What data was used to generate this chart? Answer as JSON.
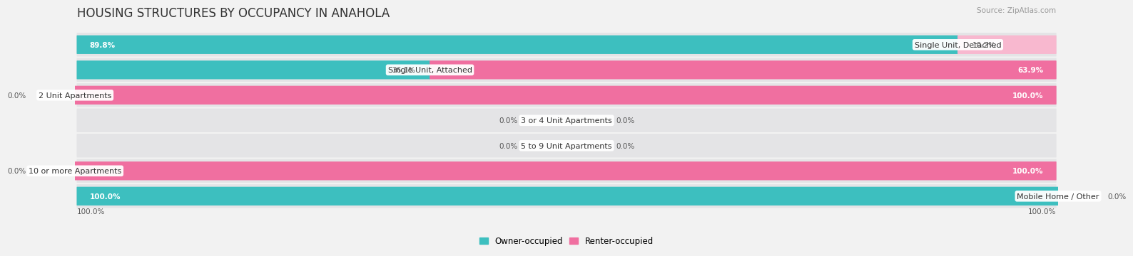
{
  "title": "HOUSING STRUCTURES BY OCCUPANCY IN ANAHOLA",
  "source": "Source: ZipAtlas.com",
  "categories": [
    "Single Unit, Detached",
    "Single Unit, Attached",
    "2 Unit Apartments",
    "3 or 4 Unit Apartments",
    "5 to 9 Unit Apartments",
    "10 or more Apartments",
    "Mobile Home / Other"
  ],
  "owner_pct": [
    89.8,
    36.1,
    0.0,
    0.0,
    0.0,
    0.0,
    100.0
  ],
  "renter_pct": [
    10.2,
    63.9,
    100.0,
    0.0,
    0.0,
    100.0,
    0.0
  ],
  "owner_color": "#3DBFBF",
  "renter_color": "#F06FA0",
  "renter_color_light": "#F8B8CF",
  "owner_label": "Owner-occupied",
  "renter_label": "Renter-occupied",
  "background_color": "#f2f2f2",
  "row_bg_color": "#e4e4e6",
  "title_fontsize": 12,
  "label_fontsize": 8,
  "value_fontsize": 7.5,
  "legend_fontsize": 8.5,
  "source_fontsize": 7.5,
  "bar_height": 0.72
}
